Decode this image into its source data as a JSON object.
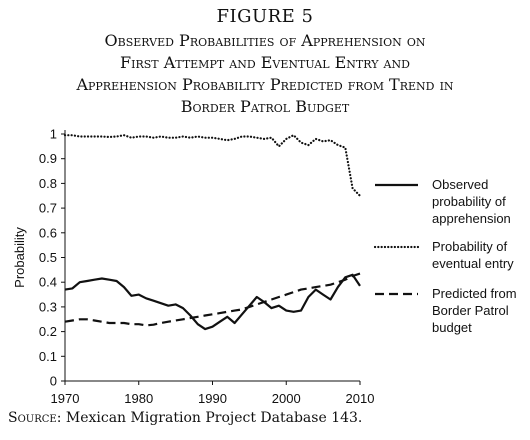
{
  "figure_label": "FIGURE 5",
  "title_lines": [
    "Observed Probabilities of Apprehension on",
    "First Attempt and Eventual Entry and",
    "Apprehension Probability Predicted from Trend in",
    "Border Patrol Budget"
  ],
  "source": {
    "label": "Source:",
    "text": "Mexican Migration Project Database 143."
  },
  "chart_data": {
    "type": "line",
    "ylabel": "Probability",
    "xlabel": "",
    "xlim": [
      1970,
      2010
    ],
    "ylim": [
      0,
      1
    ],
    "x_ticks": [
      "1970",
      "1980",
      "1990",
      "2000",
      "2010"
    ],
    "y_ticks": [
      "0",
      "0.1",
      "0.2",
      "0.3",
      "0.4",
      "0.5",
      "0.6",
      "0.7",
      "0.8",
      "0.9",
      "1"
    ],
    "grid": false,
    "legend_position": "right",
    "x": [
      1970,
      1971,
      1972,
      1973,
      1974,
      1975,
      1976,
      1977,
      1978,
      1979,
      1980,
      1981,
      1982,
      1983,
      1984,
      1985,
      1986,
      1987,
      1988,
      1989,
      1990,
      1991,
      1992,
      1993,
      1994,
      1995,
      1996,
      1997,
      1998,
      1999,
      2000,
      2001,
      2002,
      2003,
      2004,
      2005,
      2006,
      2007,
      2008,
      2009,
      2010
    ],
    "series": [
      {
        "name": "Observed probability of apprehension",
        "legend_lines": [
          "Observed",
          "probability of",
          "apprehension"
        ],
        "style": "solid",
        "values": [
          0.37,
          0.375,
          0.4,
          0.405,
          0.41,
          0.415,
          0.41,
          0.405,
          0.38,
          0.345,
          0.35,
          0.335,
          0.325,
          0.315,
          0.305,
          0.31,
          0.295,
          0.265,
          0.23,
          0.21,
          0.22,
          0.24,
          0.26,
          0.235,
          0.27,
          0.305,
          0.34,
          0.32,
          0.295,
          0.305,
          0.285,
          0.28,
          0.285,
          0.34,
          0.37,
          0.35,
          0.33,
          0.38,
          0.42,
          0.43,
          0.385
        ]
      },
      {
        "name": "Probability of eventual entry",
        "legend_lines": [
          "Probability of",
          "eventual entry"
        ],
        "style": "dotted",
        "values": [
          0.995,
          0.995,
          0.99,
          0.99,
          0.99,
          0.99,
          0.988,
          0.99,
          0.995,
          0.985,
          0.99,
          0.99,
          0.985,
          0.99,
          0.985,
          0.985,
          0.99,
          0.985,
          0.99,
          0.985,
          0.985,
          0.98,
          0.975,
          0.98,
          0.99,
          0.99,
          0.985,
          0.98,
          0.985,
          0.95,
          0.98,
          0.995,
          0.965,
          0.955,
          0.98,
          0.97,
          0.975,
          0.955,
          0.945,
          0.78,
          0.75
        ]
      },
      {
        "name": "Predicted from Border Patrol budget",
        "legend_lines": [
          "Predicted from",
          "Border Patrol",
          "budget"
        ],
        "style": "dashed",
        "values": [
          0.24,
          0.245,
          0.25,
          0.25,
          0.245,
          0.24,
          0.235,
          0.235,
          0.235,
          0.23,
          0.23,
          0.225,
          0.228,
          0.235,
          0.24,
          0.245,
          0.25,
          0.255,
          0.26,
          0.265,
          0.27,
          0.275,
          0.28,
          0.285,
          0.29,
          0.3,
          0.31,
          0.32,
          0.33,
          0.34,
          0.35,
          0.36,
          0.37,
          0.375,
          0.38,
          0.385,
          0.39,
          0.4,
          0.41,
          0.425,
          0.435
        ]
      }
    ]
  }
}
